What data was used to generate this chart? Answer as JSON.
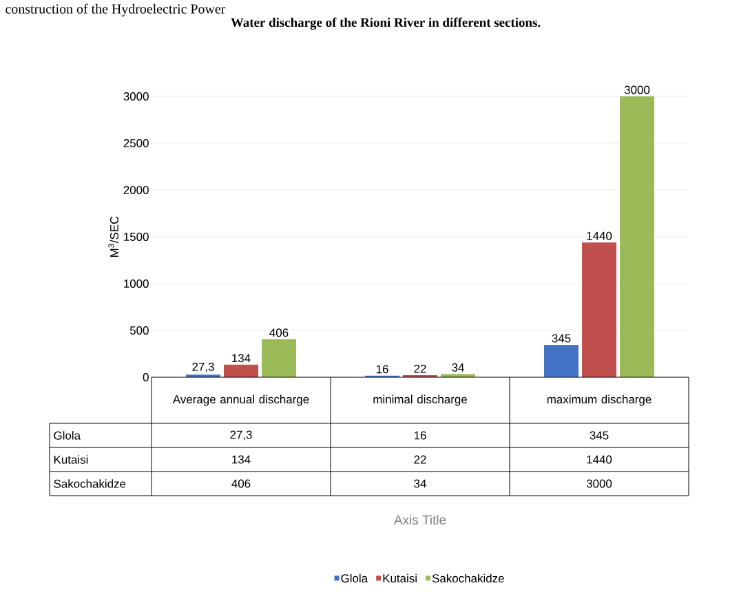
{
  "chart_data": {
    "type": "bar",
    "title": "Water discharge of the Rioni River in different sections.",
    "annotations": [
      "construction of the Hydroelectric Power",
      "Axis Title"
    ],
    "ylabel": "M$^{3}$/SEC",
    "categories": [
      "Average annual discharge",
      "minimal discharge",
      "maximum discharge"
    ],
    "series": [
      {
        "name": "Glola",
        "color": "#4472c4",
        "values": [
          27.3,
          16,
          345
        ],
        "value_labels": [
          "27,3",
          "16",
          "345"
        ]
      },
      {
        "name": "Kutaisi",
        "color": "#c0504d",
        "values": [
          134,
          22,
          1440
        ],
        "value_labels": [
          "134",
          "22",
          "1440"
        ]
      },
      {
        "name": "Sakochakidze",
        "color": "#9bbb59",
        "values": [
          406,
          34,
          3000
        ],
        "value_labels": [
          "406",
          "34",
          "3000"
        ]
      }
    ],
    "ylim": [
      0,
      3000
    ],
    "yticks": [
      0,
      500,
      1000,
      1500,
      2000,
      2500,
      3000
    ],
    "grid": "y",
    "legend": "bottom"
  }
}
